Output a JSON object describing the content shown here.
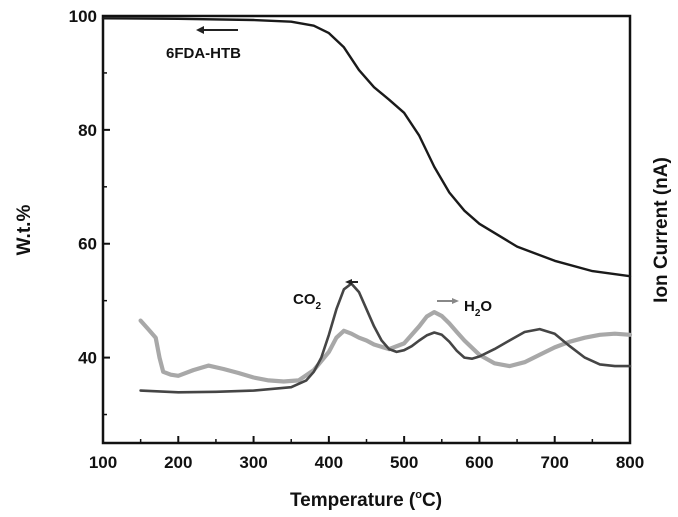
{
  "chart_data": {
    "type": "line",
    "xlabel_main": "Temperature (",
    "xlabel_unit": "C)",
    "xlabel_degree": "o",
    "ylabel_left": "W.t.%",
    "ylabel_right": "Ion Current (nA)",
    "xlim": [
      100,
      800
    ],
    "ylim": [
      25,
      100
    ],
    "xticks": [
      100,
      200,
      300,
      400,
      500,
      600,
      700,
      800
    ],
    "yticks": [
      40,
      60,
      80,
      100
    ],
    "grid": false,
    "annotations": {
      "sample": "6FDA-HTB",
      "co2_main": "CO",
      "co2_sub": "2",
      "h2o_main": "H",
      "h2o_sub": "2",
      "h2o_tail": "O"
    },
    "series": [
      {
        "role": "tga",
        "color": "#1a1a1a",
        "x": [
          100,
          200,
          300,
          350,
          380,
          400,
          420,
          440,
          460,
          480,
          500,
          520,
          540,
          560,
          580,
          600,
          650,
          700,
          750,
          800
        ],
        "y": [
          99.6,
          99.5,
          99.3,
          99.0,
          98.3,
          97.0,
          94.5,
          90.5,
          87.5,
          85.3,
          83.0,
          79.0,
          73.5,
          69.0,
          65.8,
          63.5,
          59.5,
          57.0,
          55.2,
          54.3
        ]
      },
      {
        "role": "co2",
        "color": "#454545",
        "x": [
          150,
          200,
          250,
          300,
          350,
          370,
          380,
          390,
          400,
          410,
          420,
          430,
          440,
          450,
          460,
          470,
          480,
          490,
          500,
          510,
          520,
          530,
          540,
          550,
          560,
          570,
          580,
          590,
          600,
          620,
          640,
          660,
          680,
          700,
          720,
          740,
          760,
          780,
          800
        ],
        "y": [
          34.2,
          33.9,
          34.0,
          34.2,
          34.8,
          36.0,
          37.5,
          40.0,
          44.0,
          48.5,
          52.0,
          53.0,
          51.5,
          48.5,
          45.5,
          43.0,
          41.5,
          41.0,
          41.3,
          42.0,
          43.0,
          43.9,
          44.4,
          44.0,
          42.8,
          41.2,
          40.0,
          39.8,
          40.2,
          41.5,
          43.0,
          44.5,
          45.0,
          44.2,
          42.0,
          40.0,
          38.8,
          38.5,
          38.5
        ]
      },
      {
        "role": "h2o",
        "color": "#a8a8a8",
        "x": [
          150,
          160,
          170,
          175,
          180,
          190,
          200,
          220,
          240,
          260,
          280,
          300,
          320,
          340,
          360,
          380,
          400,
          410,
          420,
          430,
          440,
          450,
          460,
          480,
          500,
          520,
          530,
          540,
          550,
          560,
          570,
          580,
          600,
          620,
          640,
          660,
          680,
          700,
          720,
          740,
          760,
          780,
          800
        ],
        "y": [
          46.5,
          45.0,
          43.5,
          40.0,
          37.5,
          37.0,
          36.8,
          37.8,
          38.6,
          38.0,
          37.3,
          36.5,
          36.0,
          35.8,
          36.0,
          37.8,
          41.0,
          43.5,
          44.7,
          44.2,
          43.5,
          43.0,
          42.3,
          41.5,
          42.5,
          45.5,
          47.2,
          48.0,
          47.3,
          46.0,
          44.5,
          43.0,
          40.5,
          39.0,
          38.5,
          39.2,
          40.5,
          41.8,
          42.8,
          43.5,
          44.0,
          44.2,
          44.0
        ]
      }
    ]
  }
}
